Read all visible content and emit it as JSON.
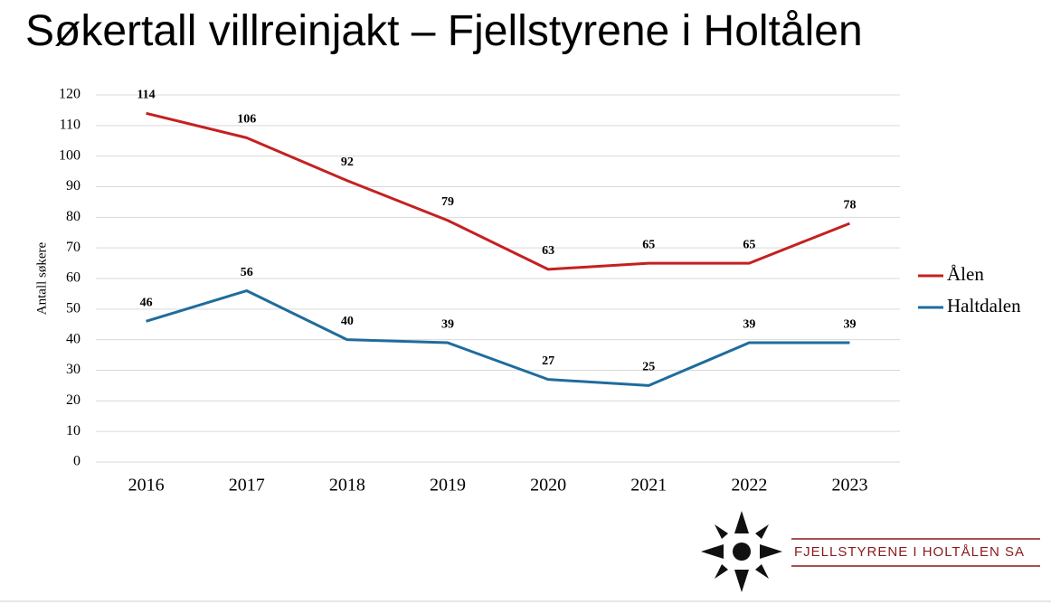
{
  "chart_data": {
    "type": "line",
    "title": "Søkertall villreinjakt – Fjellstyrene i Holtålen",
    "y_label": "Antall søkere",
    "categories": [
      "2016",
      "2017",
      "2018",
      "2019",
      "2020",
      "2021",
      "2022",
      "2023"
    ],
    "series": [
      {
        "name": "Ålen",
        "color": "#c42120",
        "values": [
          114,
          106,
          92,
          79,
          63,
          65,
          65,
          78
        ]
      },
      {
        "name": "Haltdalen",
        "color": "#1f6c9d",
        "values": [
          46,
          56,
          40,
          39,
          27,
          25,
          39,
          39
        ]
      }
    ],
    "ylim": [
      0,
      120
    ],
    "yticks": [
      0,
      10,
      20,
      30,
      40,
      50,
      60,
      70,
      80,
      90,
      100,
      110,
      120
    ],
    "grid": true,
    "legend": "right",
    "data_labels": true
  },
  "logo": {
    "text": "FJELLSTYRENE I HOLTÅLEN SA"
  }
}
